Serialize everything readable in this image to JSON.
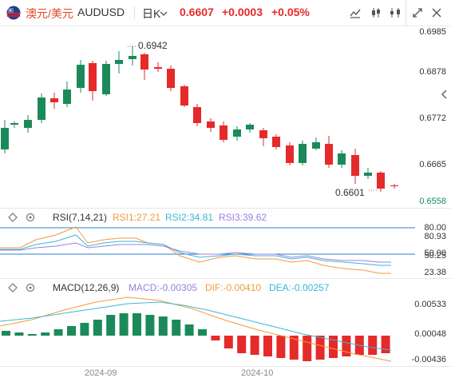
{
  "header": {
    "symbol_cn": "澳元/美元",
    "symbol_code": "AUDUSD",
    "timeframe": "日K",
    "price": "0.6607",
    "change": "+0.0003",
    "change_pct": "+0.05%",
    "icons": [
      "flag-australia-usa-icon",
      "caret-down-icon",
      "chart-type-icon",
      "candlestick-icon",
      "indicator-icon",
      "expand-icon",
      "close-icon"
    ]
  },
  "main_chart": {
    "y_labels": [
      "0.6985",
      "0.6878",
      "0.6772",
      "0.6665",
      "0.6558"
    ],
    "high_label": "0.6942",
    "low_label": "0.6601",
    "colors": {
      "up": "#1b8a5a",
      "down": "#e52a2a"
    }
  },
  "rsi": {
    "title": "RSI(7,14,21)",
    "rsi1": "RSI1:27.21",
    "rsi2": "RSI2:34.81",
    "rsi3": "RSI3:39.62",
    "levels": [
      "80.00",
      "80.93",
      "50.00",
      "50.25",
      "23.38"
    ],
    "colors": {
      "rsi1": "#f29a3c",
      "rsi2": "#3ab7d8",
      "rsi3": "#9b7fe0",
      "ref": "#2a7fcf"
    }
  },
  "macd": {
    "title": "MACD(12,26,9)",
    "macd": "MACD:-0.00305",
    "dif": "DIF:-0.00410",
    "dea": "DEA:-0.00257",
    "levels": [
      "0.00533",
      "0.00048",
      "-0.00436"
    ],
    "colors": {
      "macd": "#9b7fe0",
      "dif": "#f29a3c",
      "dea": "#3ab7d8"
    }
  },
  "x_axis": [
    "2024-09",
    "2024-10"
  ]
}
